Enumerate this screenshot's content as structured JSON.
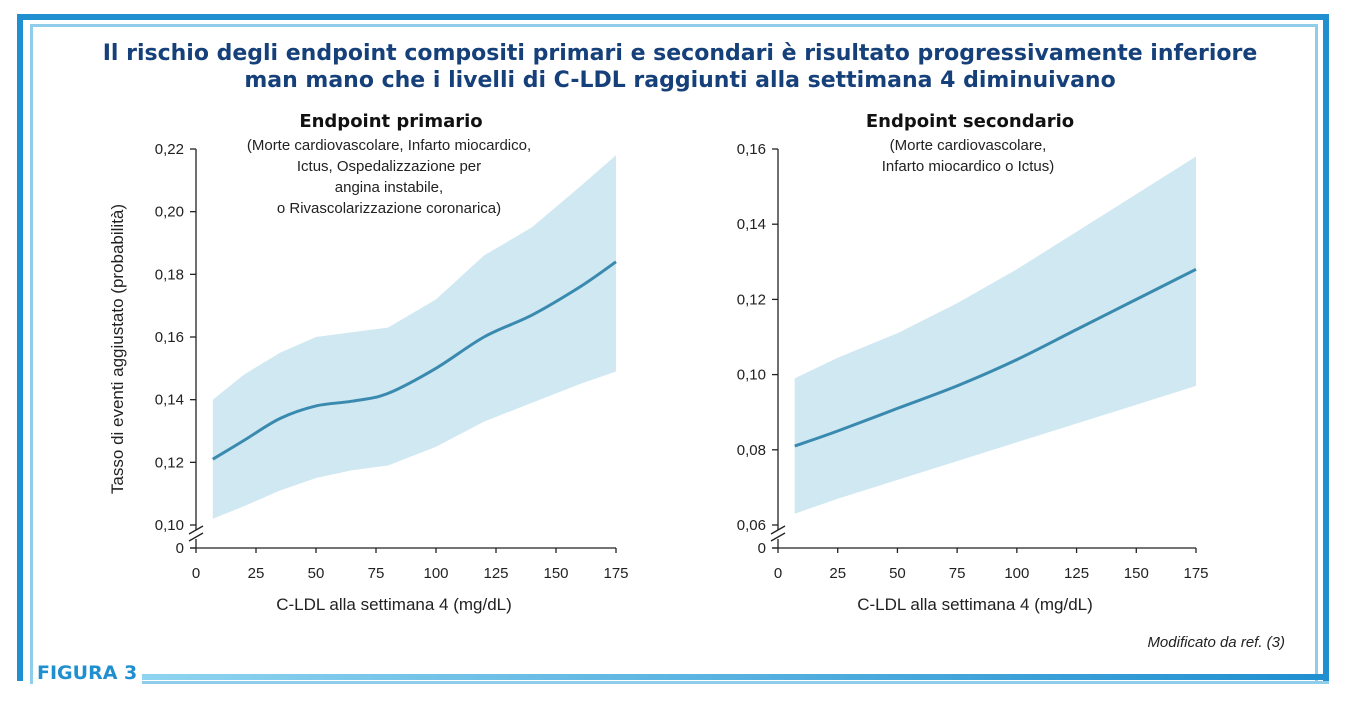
{
  "title": "Il rischio degli endpoint compositi primari e secondari è risultato progressivamente inferiore man mano che i livelli di C-LDL raggiunti alla settimana 4 diminuivano",
  "title_lines": [
    "Il rischio degli endpoint compositi primari e secondari è risultato progressivamente inferiore",
    "man mano che i livelli di C-LDL raggiunti alla settimana 4 diminuivano"
  ],
  "figure_label": "FIGURA 3",
  "credit": "Modificato da ref. (3)",
  "colors": {
    "frame": "#1f8fd0",
    "title": "#16407a",
    "line": "#3a8ab0",
    "band": "#cfe8f1"
  },
  "chart_data": [
    {
      "type": "line",
      "title": "Endpoint primario",
      "subtitle_lines": [
        "(Morte cardiovascolare, Infarto miocardico,",
        "Ictus, Ospedalizzazione per",
        "angina instabile,",
        "o Rivascolarizzazione coronarica)"
      ],
      "xlabel": "C-LDL alla settimana 4 (mg/dL)",
      "ylabel": "Tasso di eventi aggiustato (probabilità)",
      "xlim": [
        0,
        175
      ],
      "ylim": [
        0.1,
        0.22
      ],
      "xticks": [
        "0",
        "25",
        "50",
        "75",
        "100",
        "125",
        "150",
        "175"
      ],
      "yticks": [
        "0,10",
        "0,12",
        "0,14",
        "0,16",
        "0,18",
        "0,20",
        "0,22"
      ],
      "y_break_label": "0",
      "x": [
        7,
        20,
        35,
        50,
        65,
        80,
        100,
        120,
        140,
        160,
        175
      ],
      "y": [
        0.121,
        0.127,
        0.134,
        0.138,
        0.1395,
        0.142,
        0.15,
        0.16,
        0.167,
        0.176,
        0.184
      ],
      "lower": [
        0.102,
        0.106,
        0.111,
        0.115,
        0.1175,
        0.119,
        0.125,
        0.133,
        0.139,
        0.145,
        0.149
      ],
      "upper": [
        0.14,
        0.148,
        0.155,
        0.16,
        0.1615,
        0.163,
        0.172,
        0.186,
        0.195,
        0.208,
        0.218
      ]
    },
    {
      "type": "line",
      "title": "Endpoint secondario",
      "subtitle_lines": [
        "(Morte cardiovascolare,",
        "Infarto miocardico o Ictus)"
      ],
      "xlabel": "C-LDL alla settimana 4 (mg/dL)",
      "ylabel": "",
      "xlim": [
        0,
        175
      ],
      "ylim": [
        0.06,
        0.16
      ],
      "xticks": [
        "0",
        "25",
        "50",
        "75",
        "100",
        "125",
        "150",
        "175"
      ],
      "yticks": [
        "0,06",
        "0,08",
        "0,10",
        "0,12",
        "0,14",
        "0,16"
      ],
      "y_break_label": "0",
      "x": [
        7,
        25,
        50,
        75,
        100,
        125,
        150,
        175
      ],
      "y": [
        0.081,
        0.085,
        0.091,
        0.097,
        0.104,
        0.112,
        0.12,
        0.128
      ],
      "lower": [
        0.063,
        0.067,
        0.072,
        0.077,
        0.082,
        0.087,
        0.092,
        0.097
      ],
      "upper": [
        0.099,
        0.1045,
        0.111,
        0.119,
        0.128,
        0.138,
        0.148,
        0.158
      ]
    }
  ]
}
